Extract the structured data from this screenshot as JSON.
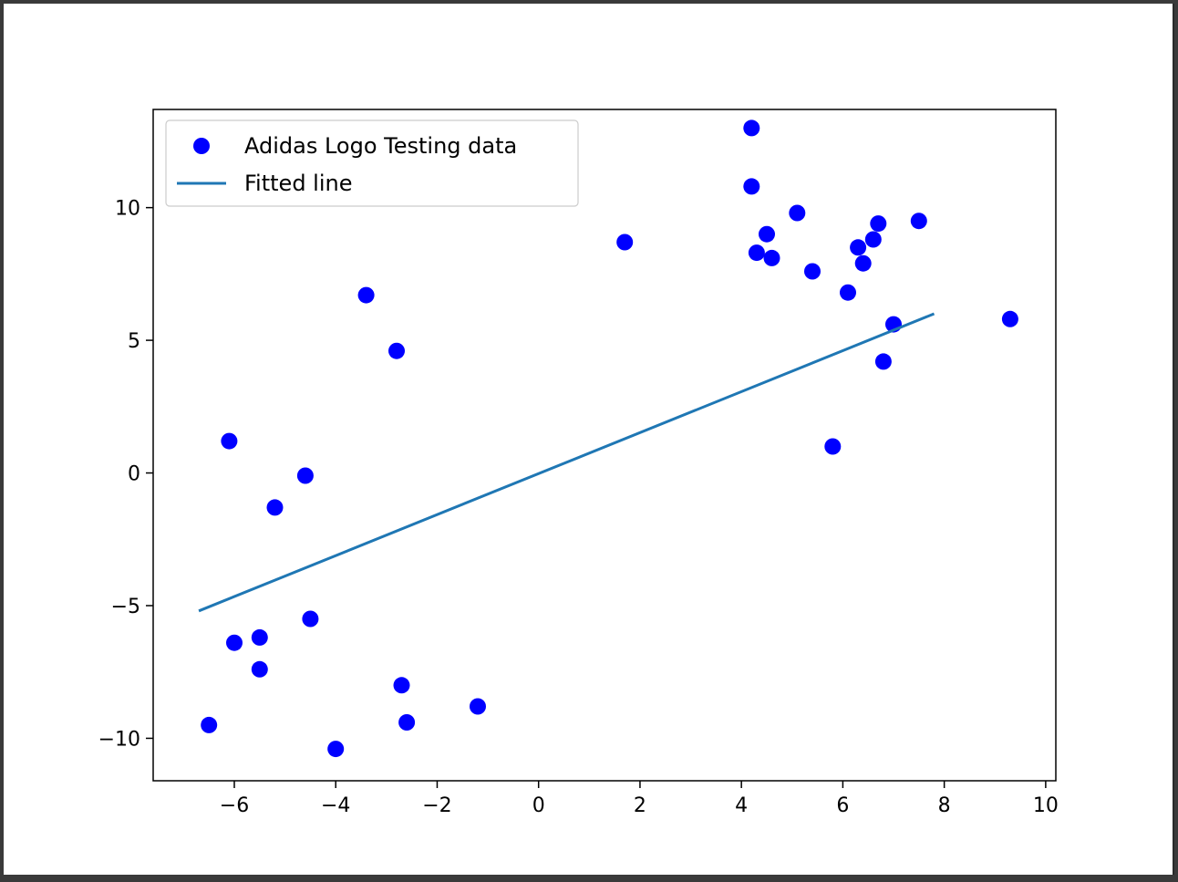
{
  "chart_data": {
    "type": "scatter",
    "title": "",
    "xlabel": "",
    "ylabel": "",
    "xlim": [
      -7.6,
      10.2
    ],
    "ylim": [
      -11.6,
      13.7
    ],
    "xticks": [
      -6,
      -4,
      -2,
      0,
      2,
      4,
      6,
      8,
      10
    ],
    "yticks": [
      -10,
      -5,
      0,
      5,
      10
    ],
    "xtick_labels": [
      "−6",
      "−4",
      "−2",
      "0",
      "2",
      "4",
      "6",
      "8",
      "10"
    ],
    "ytick_labels": [
      "−10",
      "−5",
      "0",
      "5",
      "10"
    ],
    "grid": false,
    "legend": {
      "placement": "upper-left",
      "entries": [
        "Adidas Logo Testing data",
        "Fitted line"
      ]
    },
    "series": [
      {
        "name": "Adidas Logo Testing data",
        "kind": "scatter",
        "color": "#0000ff",
        "x": [
          4.2,
          4.2,
          9.3,
          7.5,
          6.7,
          5.1,
          4.5,
          1.7,
          6.3,
          6.4,
          -6.1,
          -3.4,
          -4.0,
          -6.5,
          -1.2,
          -2.6,
          -6.0,
          -5.5,
          -5.5,
          -5.2,
          -4.6,
          -2.8,
          -2.7,
          -4.5,
          6.8,
          7.0,
          5.8,
          6.1,
          6.6,
          5.4,
          4.3,
          4.6
        ],
        "y": [
          13.0,
          10.8,
          5.8,
          9.5,
          9.4,
          9.8,
          9.0,
          8.7,
          8.5,
          7.9,
          1.2,
          6.7,
          -10.4,
          -9.5,
          -8.8,
          -9.4,
          -6.4,
          -6.2,
          -7.4,
          -1.3,
          -0.1,
          4.6,
          -8.0,
          -5.5,
          4.2,
          5.6,
          1.0,
          6.8,
          8.8,
          7.6,
          8.3,
          8.1
        ]
      },
      {
        "name": "Fitted line",
        "kind": "line",
        "color": "#1f77b4",
        "x": [
          -6.7,
          7.8
        ],
        "y": [
          -5.2,
          6.0
        ]
      }
    ]
  }
}
